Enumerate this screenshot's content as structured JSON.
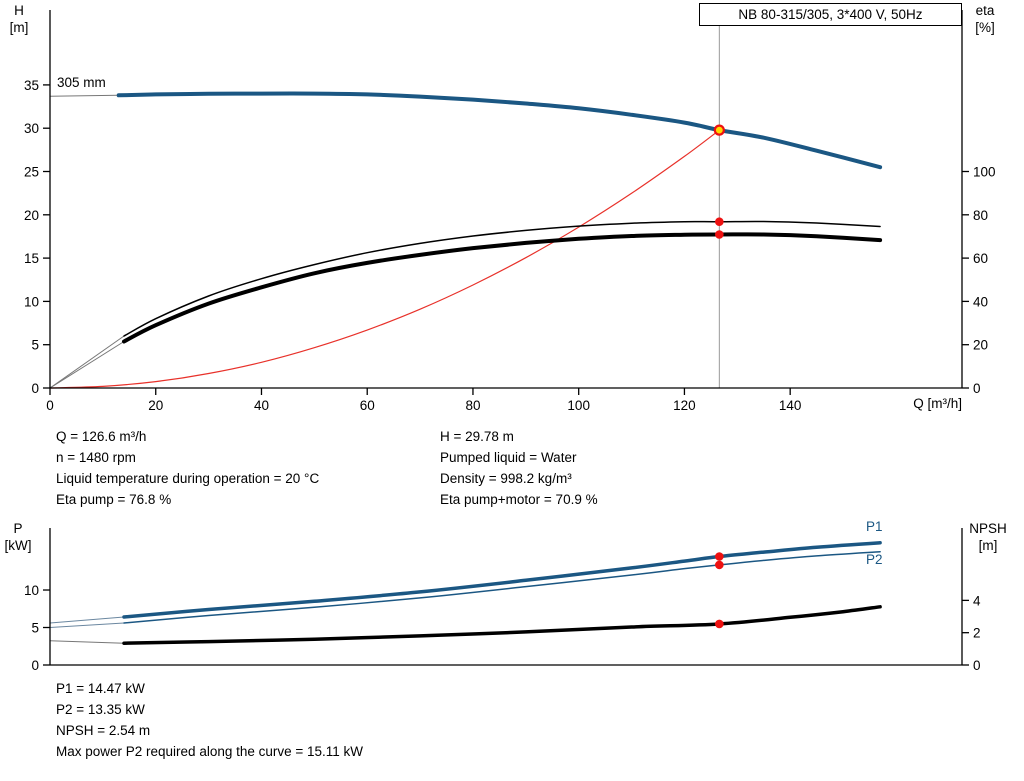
{
  "header": {
    "title": "NB 80-315/305, 3*400 V, 50Hz"
  },
  "colors": {
    "curve_blue": "#1b5783",
    "curve_black": "#000000",
    "system_red": "#e8312a",
    "dot_red": "#ee1111",
    "op_yellow": "#ffd800",
    "ref_line": "#999999",
    "axis": "#000000"
  },
  "info_top": {
    "left": [
      "Q = 126.6 m³/h",
      "n = 1480 rpm",
      "Liquid temperature during operation = 20 °C",
      "Eta pump = 76.8 %"
    ],
    "right": [
      "H = 29.78 m",
      "Pumped liquid = Water",
      "Density = 998.2 kg/m³",
      "Eta pump+motor = 70.9 %"
    ]
  },
  "info_bottom": [
    "P1 = 14.47 kW",
    "P2 = 13.35 kW",
    "NPSH = 2.54 m",
    "Max power P2 required along the curve = 15.11 kW"
  ],
  "chart_data": [
    {
      "type": "line",
      "name": "hq-eta-chart",
      "curve_label": "305 mm",
      "axis_titles": {
        "left": [
          "H",
          "[m]"
        ],
        "right": [
          "eta",
          "[%]"
        ],
        "x": "Q [m³/h]"
      },
      "x_axis": {
        "ticks": [
          0,
          20,
          40,
          60,
          80,
          100,
          120,
          140
        ],
        "range": [
          0,
          172.5
        ]
      },
      "y_left": {
        "ticks": [
          0,
          5,
          10,
          15,
          20,
          25,
          30,
          35
        ],
        "range": [
          0,
          43.65
        ]
      },
      "y_right": {
        "ticks": [
          0,
          20,
          40,
          60,
          80,
          100
        ],
        "range": [
          0,
          174.6
        ]
      },
      "legend": "none",
      "grid": false,
      "ref_line_x": 126.6,
      "series": [
        {
          "name": "system-curve",
          "axis": "left",
          "color": "#e8312a",
          "width": 1.2,
          "x": [
            0,
            10,
            20,
            30,
            40,
            50,
            60,
            70,
            80,
            90,
            100,
            110,
            120,
            126.6
          ],
          "y": [
            0,
            0.19,
            0.74,
            1.67,
            2.97,
            4.65,
            6.69,
            9.1,
            11.89,
            15.05,
            18.58,
            22.48,
            26.75,
            29.78
          ]
        },
        {
          "name": "eta-pump-motor-curve",
          "axis": "right",
          "color": "#000000",
          "width": 4,
          "x": [
            14,
            20,
            30,
            40,
            50,
            60,
            70,
            80,
            90,
            100,
            110,
            120,
            126.6,
            135,
            145,
            157
          ],
          "y": [
            21.5,
            29,
            39,
            46.5,
            53,
            57.8,
            61.5,
            64.6,
            67,
            68.9,
            70.2,
            70.8,
            70.9,
            70.9,
            70.1,
            68.3
          ],
          "lead_in": {
            "x": [
              0,
              14
            ],
            "y": [
              0,
              21.5
            ],
            "color": "#777777"
          }
        },
        {
          "name": "eta-pump-curve",
          "axis": "right",
          "color": "#000000",
          "width": 1.5,
          "x": [
            14,
            20,
            30,
            40,
            50,
            60,
            70,
            80,
            90,
            100,
            110,
            120,
            126.6,
            135,
            145,
            157
          ],
          "y": [
            24,
            32,
            42.5,
            50.5,
            57,
            62.5,
            66.8,
            70.2,
            72.8,
            74.8,
            76.1,
            76.8,
            76.8,
            76.9,
            76.2,
            74.6
          ],
          "lead_in": {
            "x": [
              0,
              14
            ],
            "y": [
              0,
              24
            ],
            "color": "#777777"
          }
        },
        {
          "name": "head-curve",
          "axis": "left",
          "color": "#1b5783",
          "width": 4,
          "x": [
            13,
            20,
            30,
            40,
            50,
            60,
            70,
            80,
            90,
            100,
            110,
            120,
            126.6,
            135,
            145,
            157
          ],
          "y": [
            33.8,
            33.9,
            33.97,
            34.0,
            34.0,
            33.9,
            33.65,
            33.3,
            32.85,
            32.3,
            31.55,
            30.65,
            29.78,
            28.9,
            27.4,
            25.5
          ],
          "lead_in": {
            "x": [
              0,
              13
            ],
            "y": [
              33.7,
              33.8
            ],
            "color": "#777777"
          }
        }
      ],
      "markers": [
        {
          "x": 126.6,
          "y": 29.78,
          "axis": "left",
          "style": "operating"
        },
        {
          "x": 126.6,
          "y": 76.8,
          "axis": "right",
          "style": "dot"
        },
        {
          "x": 126.6,
          "y": 70.9,
          "axis": "right",
          "style": "dot"
        }
      ]
    },
    {
      "type": "line",
      "name": "power-npsh-chart",
      "axis_titles": {
        "left": [
          "P",
          "[kW]"
        ],
        "right": [
          "NPSH",
          "[m]"
        ]
      },
      "x_axis": {
        "ticks": [],
        "range": [
          0,
          172.5
        ]
      },
      "y_left": {
        "ticks": [
          0,
          5,
          10
        ],
        "range": [
          0,
          18.27
        ]
      },
      "y_right": {
        "ticks": [
          0,
          2,
          4
        ],
        "range": [
          0,
          8.48
        ]
      },
      "legend": "none",
      "grid": false,
      "series": [
        {
          "name": "npsh-curve",
          "axis": "right",
          "color": "#000000",
          "width": 3.5,
          "x": [
            14,
            30,
            50,
            70,
            90,
            110,
            126.6,
            140,
            150,
            157
          ],
          "y": [
            1.35,
            1.45,
            1.6,
            1.8,
            2.05,
            2.35,
            2.54,
            2.95,
            3.3,
            3.6
          ],
          "lead_in": {
            "x": [
              0,
              14
            ],
            "y": [
              1.5,
              1.35
            ],
            "color": "#777777"
          }
        },
        {
          "name": "p2-curve",
          "label": "P2",
          "axis": "left",
          "color": "#1b5783",
          "width": 1.5,
          "x": [
            14,
            30,
            50,
            70,
            90,
            110,
            120,
            126.6,
            135,
            145,
            157
          ],
          "y": [
            5.6,
            6.6,
            7.7,
            8.95,
            10.45,
            12.0,
            12.85,
            13.35,
            13.95,
            14.55,
            15.11
          ],
          "lead_in": {
            "x": [
              0,
              14
            ],
            "y": [
              5.0,
              5.6
            ],
            "color": "#6b87a0"
          }
        },
        {
          "name": "p1-curve",
          "label": "P1",
          "axis": "left",
          "color": "#1b5783",
          "width": 3.5,
          "x": [
            14,
            30,
            50,
            70,
            90,
            110,
            120,
            126.6,
            135,
            145,
            157
          ],
          "y": [
            6.4,
            7.4,
            8.5,
            9.75,
            11.3,
            12.95,
            13.85,
            14.47,
            15.05,
            15.7,
            16.3
          ],
          "lead_in": {
            "x": [
              0,
              14
            ],
            "y": [
              5.6,
              6.4
            ],
            "color": "#6b87a0"
          }
        }
      ],
      "markers": [
        {
          "x": 126.6,
          "y": 14.47,
          "axis": "left",
          "style": "dot"
        },
        {
          "x": 126.6,
          "y": 13.35,
          "axis": "left",
          "style": "dot"
        },
        {
          "x": 126.6,
          "y": 2.54,
          "axis": "right",
          "style": "dot"
        }
      ]
    }
  ]
}
